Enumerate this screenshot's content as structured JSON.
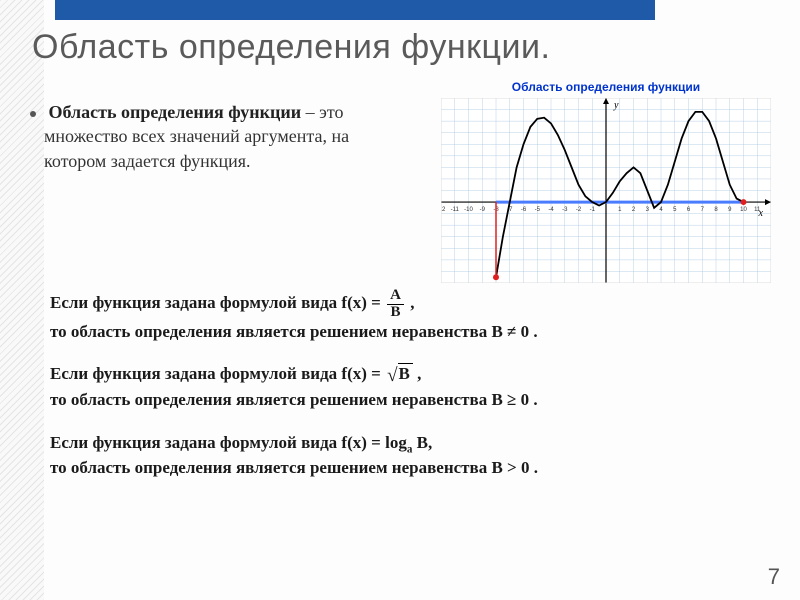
{
  "title": "Область определения функции.",
  "definition": {
    "term": "Область определения функции",
    "text": " – это множество всех значений аргумента, на котором задается функция."
  },
  "chart": {
    "title": "Область определения функции",
    "background": "#ffffff",
    "grid_color": "#b8d0e6",
    "axis_color": "#000000",
    "curve_color": "#000000",
    "domain_color": "#4a7cff",
    "endpoint_color": "#e02020",
    "xlim": [
      -12,
      12
    ],
    "ylim": [
      -7,
      9
    ],
    "x_ticks": [
      -12,
      -11,
      -10,
      -9,
      -8,
      -7,
      -6,
      -5,
      -4,
      -3,
      -2,
      -1,
      0,
      1,
      2,
      3,
      4,
      5,
      6,
      7,
      8,
      9,
      10,
      11
    ],
    "domain_segment": {
      "from": -8,
      "to": 10,
      "y": 0
    },
    "curve_points": [
      [
        -8,
        -6.5
      ],
      [
        -7.5,
        -3
      ],
      [
        -7,
        0
      ],
      [
        -6.5,
        3
      ],
      [
        -6,
        5
      ],
      [
        -5.5,
        6.5
      ],
      [
        -5,
        7.2
      ],
      [
        -4.5,
        7.3
      ],
      [
        -4,
        6.8
      ],
      [
        -3.5,
        5.8
      ],
      [
        -3,
        4.5
      ],
      [
        -2.5,
        3
      ],
      [
        -2,
        1.5
      ],
      [
        -1.5,
        0.5
      ],
      [
        -1,
        0
      ],
      [
        -0.5,
        -0.3
      ],
      [
        0,
        0
      ],
      [
        0.5,
        0.8
      ],
      [
        1,
        1.8
      ],
      [
        1.5,
        2.5
      ],
      [
        2,
        3
      ],
      [
        2.5,
        2.5
      ],
      [
        3,
        1
      ],
      [
        3.5,
        -0.5
      ],
      [
        4,
        0
      ],
      [
        4.5,
        1.5
      ],
      [
        5,
        3.5
      ],
      [
        5.5,
        5.5
      ],
      [
        6,
        7
      ],
      [
        6.5,
        7.8
      ],
      [
        7,
        7.8
      ],
      [
        7.5,
        7
      ],
      [
        8,
        5.5
      ],
      [
        8.5,
        3.5
      ],
      [
        9,
        1.5
      ],
      [
        9.5,
        0.3
      ],
      [
        10,
        0
      ]
    ],
    "x_label": "x",
    "y_label": "y",
    "label_fontsize": 10
  },
  "rules": [
    {
      "prefix": "Если функция задана формулой вида f(x) = ",
      "form": "fraction",
      "A": "A",
      "B": "B",
      "suffix": " ,",
      "conclusion": "то область определения является решением неравенства В ≠ 0 ."
    },
    {
      "prefix": "Если функция задана формулой вида f(x) = ",
      "form": "sqrt",
      "B": "B",
      "suffix": " ,",
      "conclusion": "то область определения является решением неравенства В ≥ 0 ."
    },
    {
      "prefix": "Если функция задана формулой вида f(x) = ",
      "form": "log",
      "base": "a",
      "B": "B",
      "suffix": ",",
      "conclusion": "то область определения является решением неравенства В > 0 ."
    }
  ],
  "page_number": "7"
}
